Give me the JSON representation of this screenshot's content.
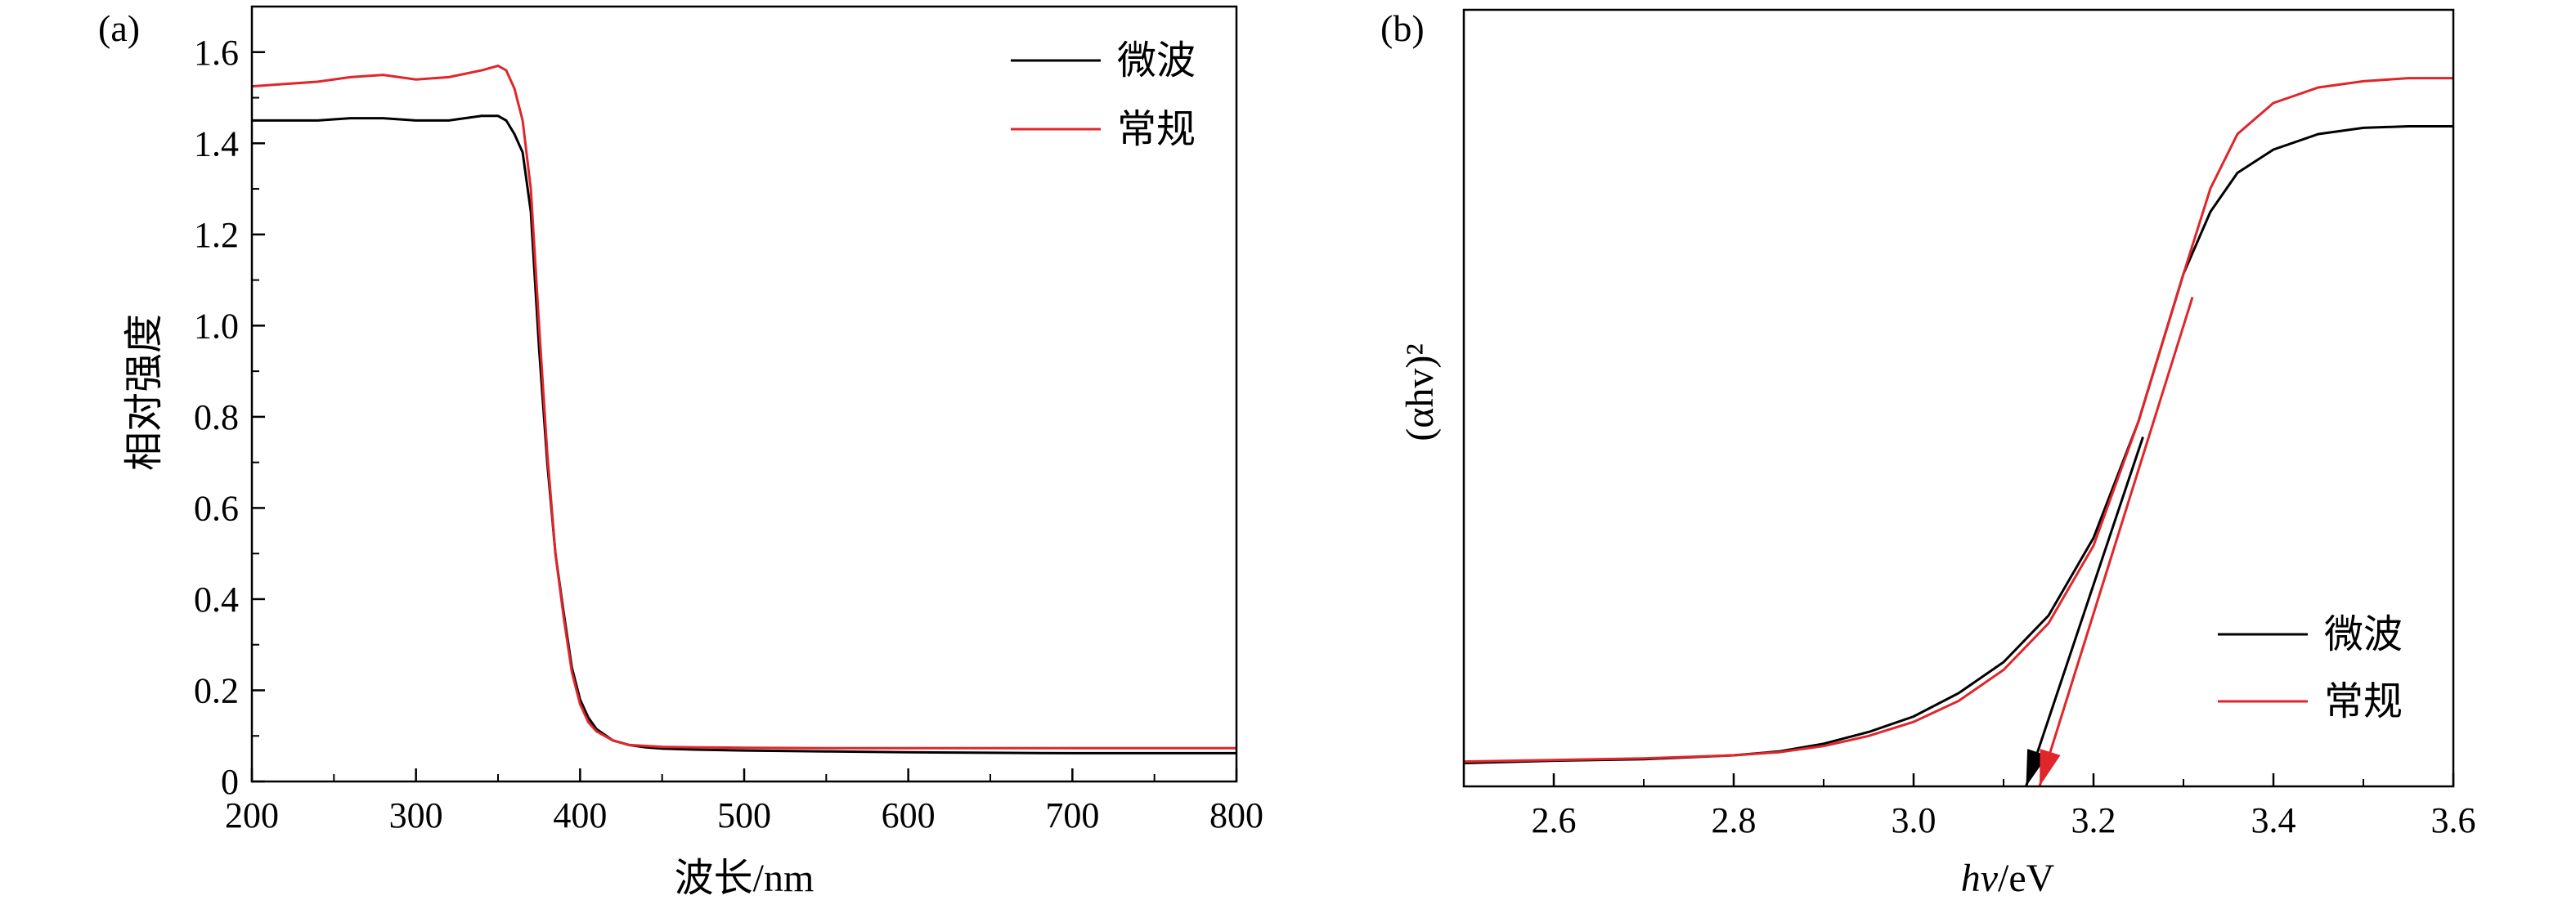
{
  "chart_data": [
    {
      "panel_label": "(a)",
      "type": "line",
      "xlabel": "波长/nm",
      "ylabel": "相对强度",
      "xlim": [
        200,
        800
      ],
      "ylim": [
        0,
        1.7
      ],
      "xticks": [
        200,
        300,
        400,
        500,
        600,
        700,
        800
      ],
      "yticks": [
        0,
        0.2,
        0.4,
        0.6,
        0.8,
        1.0,
        1.2,
        1.4,
        1.6
      ],
      "ytick_labels": [
        "0",
        "0.2",
        "0.4",
        "0.6",
        "0.8",
        "1.0",
        "1.2",
        "1.4",
        "1.6"
      ],
      "legend_position": "top-right",
      "series": [
        {
          "name": "微波",
          "color": "#000000",
          "x": [
            200,
            220,
            240,
            260,
            280,
            300,
            320,
            340,
            350,
            355,
            360,
            365,
            370,
            375,
            380,
            385,
            390,
            395,
            400,
            405,
            410,
            420,
            430,
            440,
            450,
            470,
            500,
            550,
            600,
            650,
            700,
            750,
            800
          ],
          "y": [
            1.45,
            1.45,
            1.45,
            1.455,
            1.455,
            1.45,
            1.45,
            1.46,
            1.46,
            1.45,
            1.42,
            1.38,
            1.25,
            0.95,
            0.7,
            0.5,
            0.37,
            0.25,
            0.18,
            0.14,
            0.115,
            0.09,
            0.08,
            0.075,
            0.072,
            0.07,
            0.068,
            0.066,
            0.064,
            0.063,
            0.062,
            0.062,
            0.062
          ]
        },
        {
          "name": "常规",
          "color": "#e0262a",
          "x": [
            200,
            220,
            240,
            260,
            280,
            300,
            320,
            340,
            350,
            355,
            360,
            365,
            370,
            375,
            380,
            385,
            390,
            395,
            400,
            405,
            410,
            420,
            430,
            440,
            450,
            470,
            500,
            550,
            600,
            650,
            700,
            750,
            800
          ],
          "y": [
            1.525,
            1.53,
            1.535,
            1.545,
            1.55,
            1.54,
            1.545,
            1.56,
            1.57,
            1.56,
            1.52,
            1.45,
            1.3,
            1.0,
            0.72,
            0.5,
            0.36,
            0.24,
            0.17,
            0.13,
            0.11,
            0.09,
            0.08,
            0.078,
            0.076,
            0.075,
            0.074,
            0.073,
            0.073,
            0.073,
            0.073,
            0.073,
            0.073
          ]
        }
      ]
    },
    {
      "panel_label": "(b)",
      "type": "line",
      "xlabel_italic": "hv",
      "xlabel_rest": "/eV",
      "ylabel": "(αhv)²",
      "xlim": [
        2.5,
        3.6
      ],
      "ylim": [
        0,
        1.0
      ],
      "xticks": [
        2.6,
        2.8,
        3.0,
        3.2,
        3.4,
        3.6
      ],
      "xtick_labels": [
        "2.6",
        "2.8",
        "3.0",
        "3.2",
        "3.4",
        "3.6"
      ],
      "legend_position": "bottom-right",
      "series": [
        {
          "name": "微波",
          "color": "#000000",
          "x": [
            2.5,
            2.6,
            2.7,
            2.8,
            2.85,
            2.9,
            2.95,
            3.0,
            3.05,
            3.1,
            3.15,
            3.2,
            3.25,
            3.3,
            3.33,
            3.36,
            3.4,
            3.45,
            3.5,
            3.55,
            3.6
          ],
          "y": [
            0.03,
            0.033,
            0.035,
            0.04,
            0.045,
            0.055,
            0.07,
            0.09,
            0.12,
            0.16,
            0.22,
            0.32,
            0.47,
            0.66,
            0.74,
            0.79,
            0.82,
            0.84,
            0.848,
            0.85,
            0.85
          ]
        },
        {
          "name": "常规",
          "color": "#e0262a",
          "x": [
            2.5,
            2.6,
            2.7,
            2.8,
            2.85,
            2.9,
            2.95,
            3.0,
            3.05,
            3.1,
            3.15,
            3.2,
            3.25,
            3.3,
            3.33,
            3.36,
            3.4,
            3.45,
            3.5,
            3.55,
            3.6
          ],
          "y": [
            0.032,
            0.034,
            0.036,
            0.04,
            0.044,
            0.052,
            0.065,
            0.083,
            0.11,
            0.15,
            0.21,
            0.31,
            0.47,
            0.66,
            0.77,
            0.84,
            0.88,
            0.9,
            0.908,
            0.912,
            0.912
          ]
        }
      ],
      "tangent_lines": [
        {
          "series": "微波",
          "color": "#000000",
          "from": [
            3.255,
            0.45
          ],
          "to": [
            3.125,
            0.0
          ]
        },
        {
          "series": "常规",
          "color": "#e0262a",
          "from": [
            3.31,
            0.63
          ],
          "to": [
            3.14,
            0.0
          ]
        }
      ]
    }
  ]
}
